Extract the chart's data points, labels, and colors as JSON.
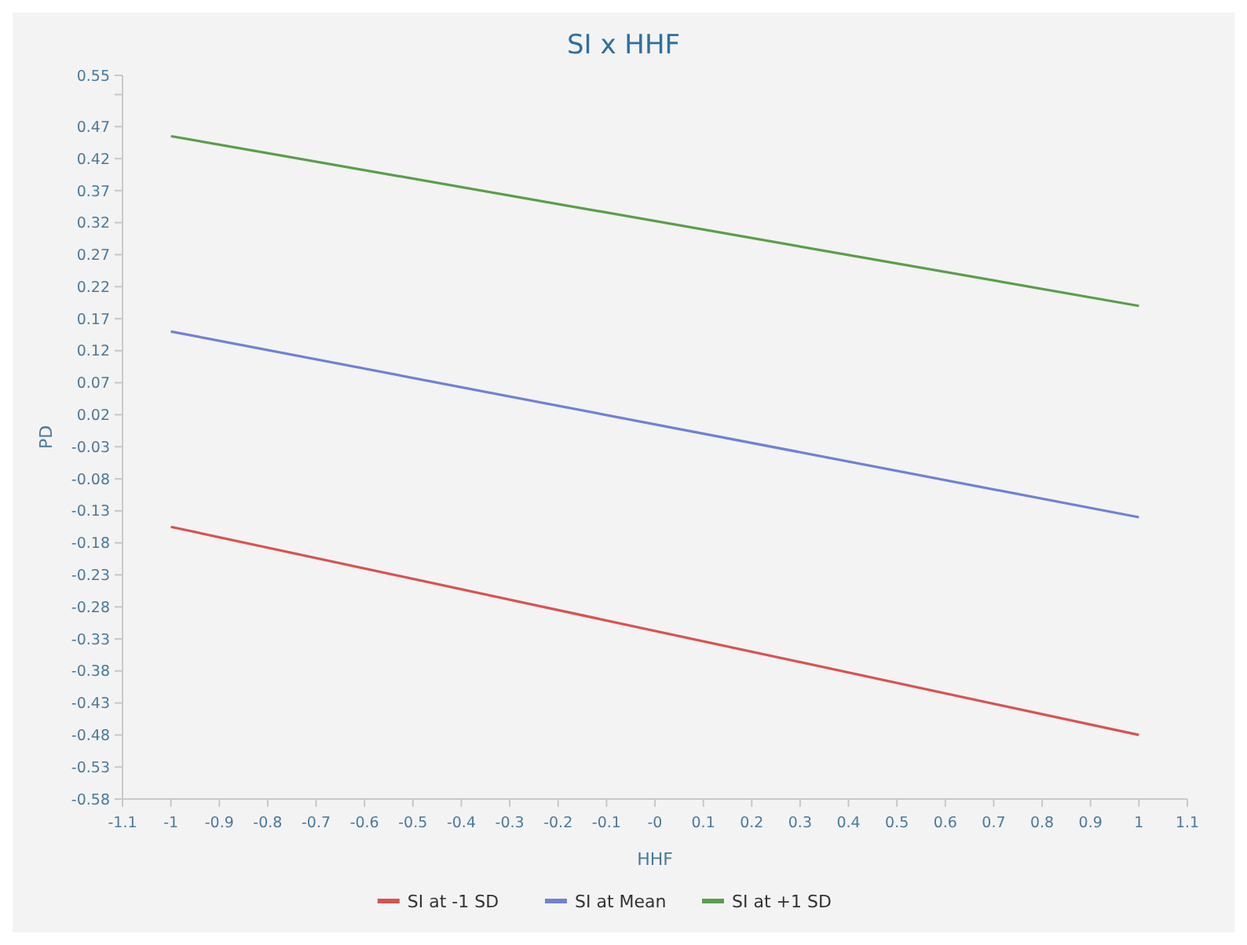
{
  "chart_data": {
    "type": "line",
    "title": "SI x HHF",
    "xlabel": "HHF",
    "ylabel": "PD",
    "x": [
      -1,
      1
    ],
    "series": [
      {
        "name": "SI at -1 SD",
        "color": "#d9534f",
        "values": [
          -0.155,
          -0.48
        ]
      },
      {
        "name": "SI at Mean",
        "color": "#6f82d4",
        "values": [
          0.15,
          -0.14
        ]
      },
      {
        "name": "SI at +1 SD",
        "color": "#5a9e4a",
        "values": [
          0.455,
          0.19
        ]
      }
    ],
    "xlim": [
      -1.1,
      1.1
    ],
    "xticks": [
      -1.1,
      -1,
      -0.9,
      -0.8,
      -0.7,
      -0.6,
      -0.5,
      -0.4,
      -0.3,
      -0.2,
      -0.1,
      {
        "value": 0,
        "label": "-0"
      },
      0.1,
      0.2,
      0.3,
      0.4,
      0.5,
      0.6,
      0.7,
      0.8,
      0.9,
      1,
      1.1
    ],
    "ylim": [
      -0.58,
      0.55
    ],
    "yticks": [
      0.55,
      {
        "value": 0.52,
        "label": null
      },
      0.47,
      0.42,
      0.37,
      0.32,
      0.27,
      0.22,
      0.17,
      0.12,
      0.07,
      0.02,
      -0.03,
      -0.08,
      -0.13,
      -0.18,
      -0.23,
      -0.28,
      -0.33,
      -0.38,
      -0.43,
      -0.48,
      -0.53,
      -0.58
    ],
    "grid": false,
    "legend": "bottom",
    "marker": "none",
    "line_style": "solid"
  }
}
